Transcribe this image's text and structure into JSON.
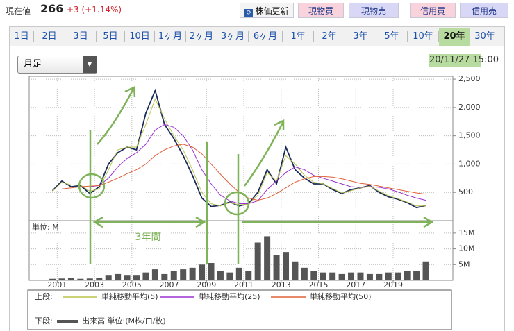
{
  "header": {
    "price_label": "現在値",
    "price": 266,
    "change": "+3 (+1.14%)"
  },
  "buttons": [
    "株価更新",
    "現物買",
    "現物売",
    "信用買",
    "信用売"
  ],
  "tabs": [
    "1日",
    "2日",
    "3日",
    "5日",
    "10日",
    "1ヶ月",
    "2ヶ月",
    "3ヶ月",
    "6ヶ月",
    "1年",
    "2年",
    "3年",
    "5年",
    "10年",
    "20年",
    "30年"
  ],
  "selected_tab": 14,
  "period_select": "月足",
  "timestamp": "20/11/27 15:00",
  "annotations": [
    "3年間"
  ],
  "legend": {
    "upper_label": "上段:",
    "lower_label": "下段:"
  },
  "chart_data": [
    {
      "type": "line",
      "x": [
        2000.75,
        2001.25,
        2001.75,
        2002.25,
        2002.75,
        2003.25,
        2003.75,
        2004.25,
        2004.75,
        2005.25,
        2005.75,
        2006.25,
        2006.75,
        2007.25,
        2007.75,
        2008.25,
        2008.75,
        2009.25,
        2009.75,
        2010.25,
        2010.75,
        2011.25,
        2011.75,
        2012.25,
        2012.75,
        2013.25,
        2013.75,
        2014.25,
        2014.75,
        2015.25,
        2015.75,
        2016.25,
        2016.75,
        2017.25,
        2017.75,
        2018.25,
        2018.75,
        2019.25,
        2019.75,
        2020.25,
        2020.75
      ],
      "series": [
        {
          "color": "#1a2a5a",
          "values": [
            530,
            700,
            600,
            620,
            480,
            600,
            1000,
            1200,
            1300,
            1250,
            1900,
            2300,
            1700,
            1450,
            1150,
            800,
            400,
            250,
            270,
            330,
            260,
            300,
            500,
            900,
            650,
            1300,
            900,
            750,
            650,
            650,
            550,
            480,
            550,
            580,
            620,
            500,
            420,
            380,
            320,
            230,
            266
          ]
        },
        {
          "name": "単純移動平均(5)",
          "color": "#b9c24a",
          "values": [
            520,
            680,
            630,
            630,
            520,
            560,
            900,
            1250,
            1300,
            1300,
            1700,
            2150,
            1800,
            1500,
            1250,
            900,
            500,
            300,
            260,
            320,
            280,
            290,
            450,
            850,
            700,
            1150,
            1000,
            800,
            680,
            650,
            570,
            490,
            530,
            580,
            610,
            520,
            440,
            390,
            330,
            260,
            260
          ]
        },
        {
          "name": "単純移動平均(25)",
          "color": "#9b30d0",
          "values": [
            null,
            null,
            null,
            null,
            600,
            620,
            750,
            950,
            1100,
            1200,
            1350,
            1600,
            1700,
            1650,
            1500,
            1250,
            900,
            650,
            450,
            350,
            300,
            300,
            350,
            550,
            700,
            850,
            950,
            900,
            800,
            750,
            700,
            650,
            600,
            590,
            600,
            590,
            560,
            510,
            450,
            400,
            360
          ]
        },
        {
          "name": "単純移動平均(50)",
          "color": "#e0603a",
          "values": [
            null,
            560,
            580,
            600,
            610,
            620,
            680,
            750,
            830,
            900,
            1000,
            1150,
            1250,
            1320,
            1350,
            1300,
            1180,
            1000,
            820,
            650,
            500,
            400,
            360,
            400,
            480,
            580,
            680,
            740,
            780,
            780,
            770,
            740,
            700,
            660,
            640,
            610,
            580,
            550,
            520,
            490,
            470
          ]
        }
      ],
      "xlim": [
        1999.5,
        2022.2
      ],
      "xticks": [
        2001,
        2003,
        2005,
        2007,
        2009,
        2011,
        2013,
        2015,
        2017,
        2019
      ],
      "ylim": [
        0,
        2550
      ],
      "yticks": [
        500,
        {
          "value": 1000,
          "label": "1,000"
        },
        {
          "value": 1500,
          "label": "1,500"
        },
        {
          "value": 2000,
          "label": "2,000"
        },
        {
          "value": 2500,
          "label": "2,500"
        }
      ],
      "grid": true
    },
    {
      "type": "bar",
      "unit_label": "単位: M",
      "x": [
        2000.75,
        2001.25,
        2001.75,
        2002.25,
        2002.75,
        2003.25,
        2003.75,
        2004.25,
        2004.75,
        2005.25,
        2005.75,
        2006.25,
        2006.75,
        2007.25,
        2007.75,
        2008.25,
        2008.75,
        2009.25,
        2009.75,
        2010.25,
        2010.75,
        2011.25,
        2011.75,
        2012.25,
        2012.75,
        2013.25,
        2013.75,
        2014.25,
        2014.75,
        2015.25,
        2015.75,
        2016.25,
        2016.75,
        2017.25,
        2017.75,
        2018.25,
        2018.75,
        2019.25,
        2019.75,
        2020.25,
        2020.75
      ],
      "series": [
        {
          "name": "出来高 単位:(M株/口/枚)",
          "color": "#555555",
          "values": [
            0.5,
            0.6,
            0.8,
            0.5,
            0.6,
            0.8,
            1.5,
            2,
            1.5,
            1.5,
            2.5,
            3.5,
            2,
            3,
            3.5,
            4,
            5,
            5.5,
            3,
            2.5,
            4,
            3,
            12,
            14,
            8,
            9,
            6,
            4,
            3,
            2.5,
            2.5,
            2,
            2.5,
            2.5,
            2,
            2,
            2.5,
            2.5,
            3,
            3,
            6
          ]
        }
      ],
      "xlim": [
        1999.5,
        2022.2
      ],
      "ylim": [
        0,
        18.5
      ],
      "yticks": [
        {
          "value": 5,
          "label": "5M"
        },
        {
          "value": 10,
          "label": "10M"
        },
        {
          "value": 15,
          "label": "15M"
        }
      ],
      "grid": true
    }
  ]
}
